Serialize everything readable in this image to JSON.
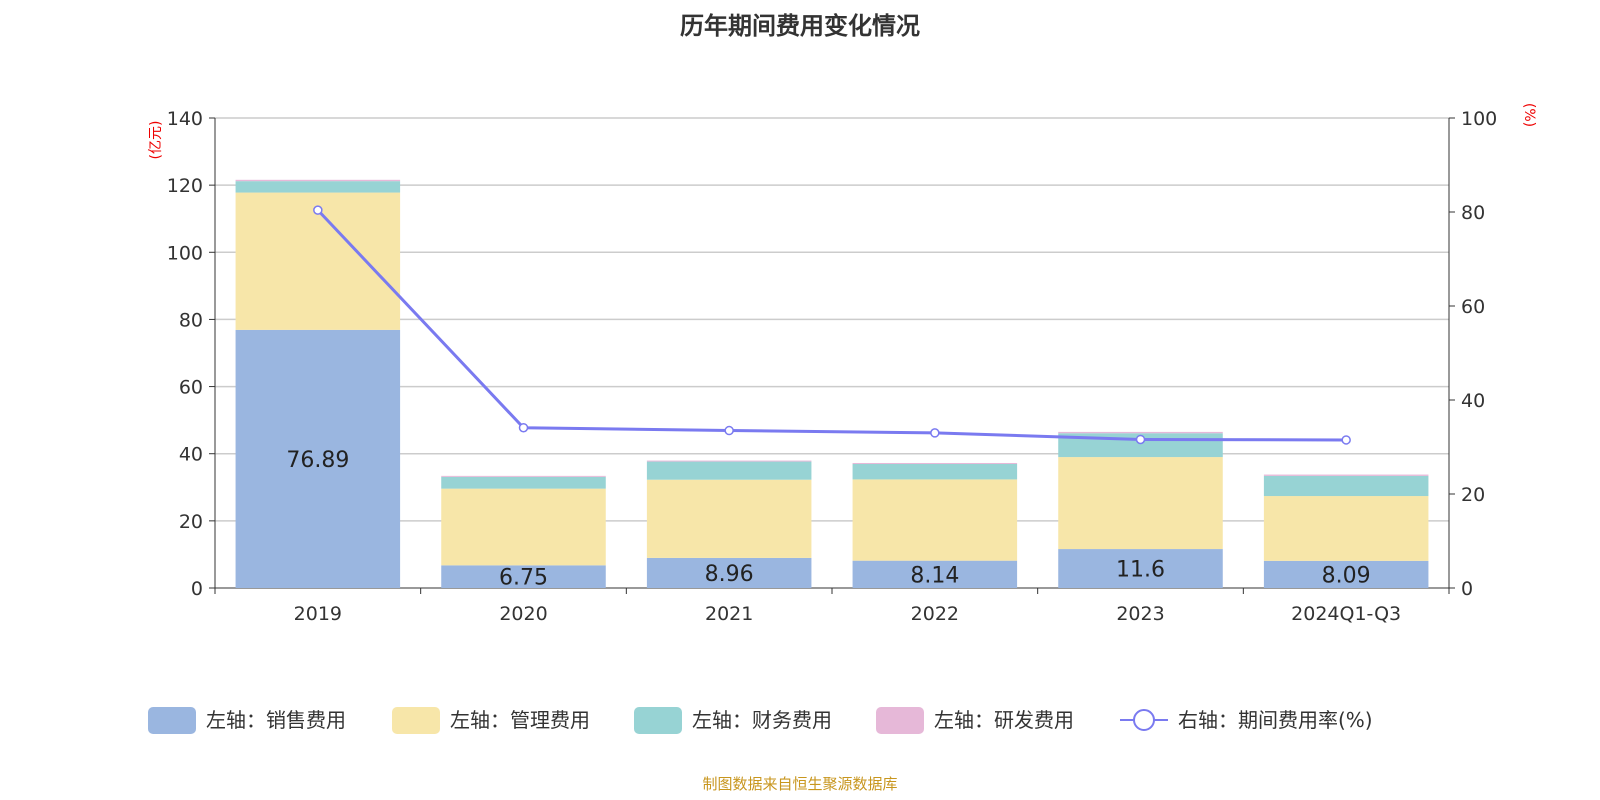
{
  "chart_data": {
    "type": "bar",
    "stacked": true,
    "title": "历年期间费用变化情况",
    "categories": [
      "2019",
      "2020",
      "2021",
      "2022",
      "2023",
      "2024Q1-Q3"
    ],
    "left_axis": {
      "unit": "(亿元)",
      "ylim": [
        0,
        140
      ],
      "ticks": [
        0,
        20,
        40,
        60,
        80,
        100,
        120,
        140
      ]
    },
    "right_axis": {
      "unit": "(%)",
      "ylim": [
        0,
        100
      ],
      "ticks": [
        0,
        20,
        40,
        60,
        80,
        100
      ]
    },
    "grid": true,
    "legend_position": "bottom",
    "series": [
      {
        "name": "左轴：销售费用",
        "type": "bar",
        "axis": "left",
        "color": "#9ab6e0",
        "values": [
          76.89,
          6.75,
          8.96,
          8.14,
          11.6,
          8.09
        ],
        "labels": [
          "76.89",
          "6.75",
          "8.96",
          "8.14",
          "11.6",
          "8.09"
        ]
      },
      {
        "name": "左轴：管理费用",
        "type": "bar",
        "axis": "left",
        "color": "#f7e6a9",
        "values": [
          40.9,
          22.85,
          23.3,
          24.2,
          27.4,
          19.3
        ]
      },
      {
        "name": "左轴：财务费用",
        "type": "bar",
        "axis": "left",
        "color": "#97d3d4",
        "values": [
          3.4,
          3.5,
          5.4,
          4.6,
          7.1,
          6.0
        ]
      },
      {
        "name": "左轴：研发费用",
        "type": "bar",
        "axis": "left",
        "color": "#e6b8d8",
        "values": [
          0.4,
          0.3,
          0.3,
          0.3,
          0.4,
          0.4
        ]
      },
      {
        "name": "右轴：期间费用率(%)",
        "type": "line",
        "axis": "right",
        "color": "#7a7af0",
        "values": [
          80.4,
          34.1,
          33.5,
          33.0,
          31.6,
          31.5
        ]
      }
    ]
  },
  "source": "制图数据来自恒生聚源数据库"
}
